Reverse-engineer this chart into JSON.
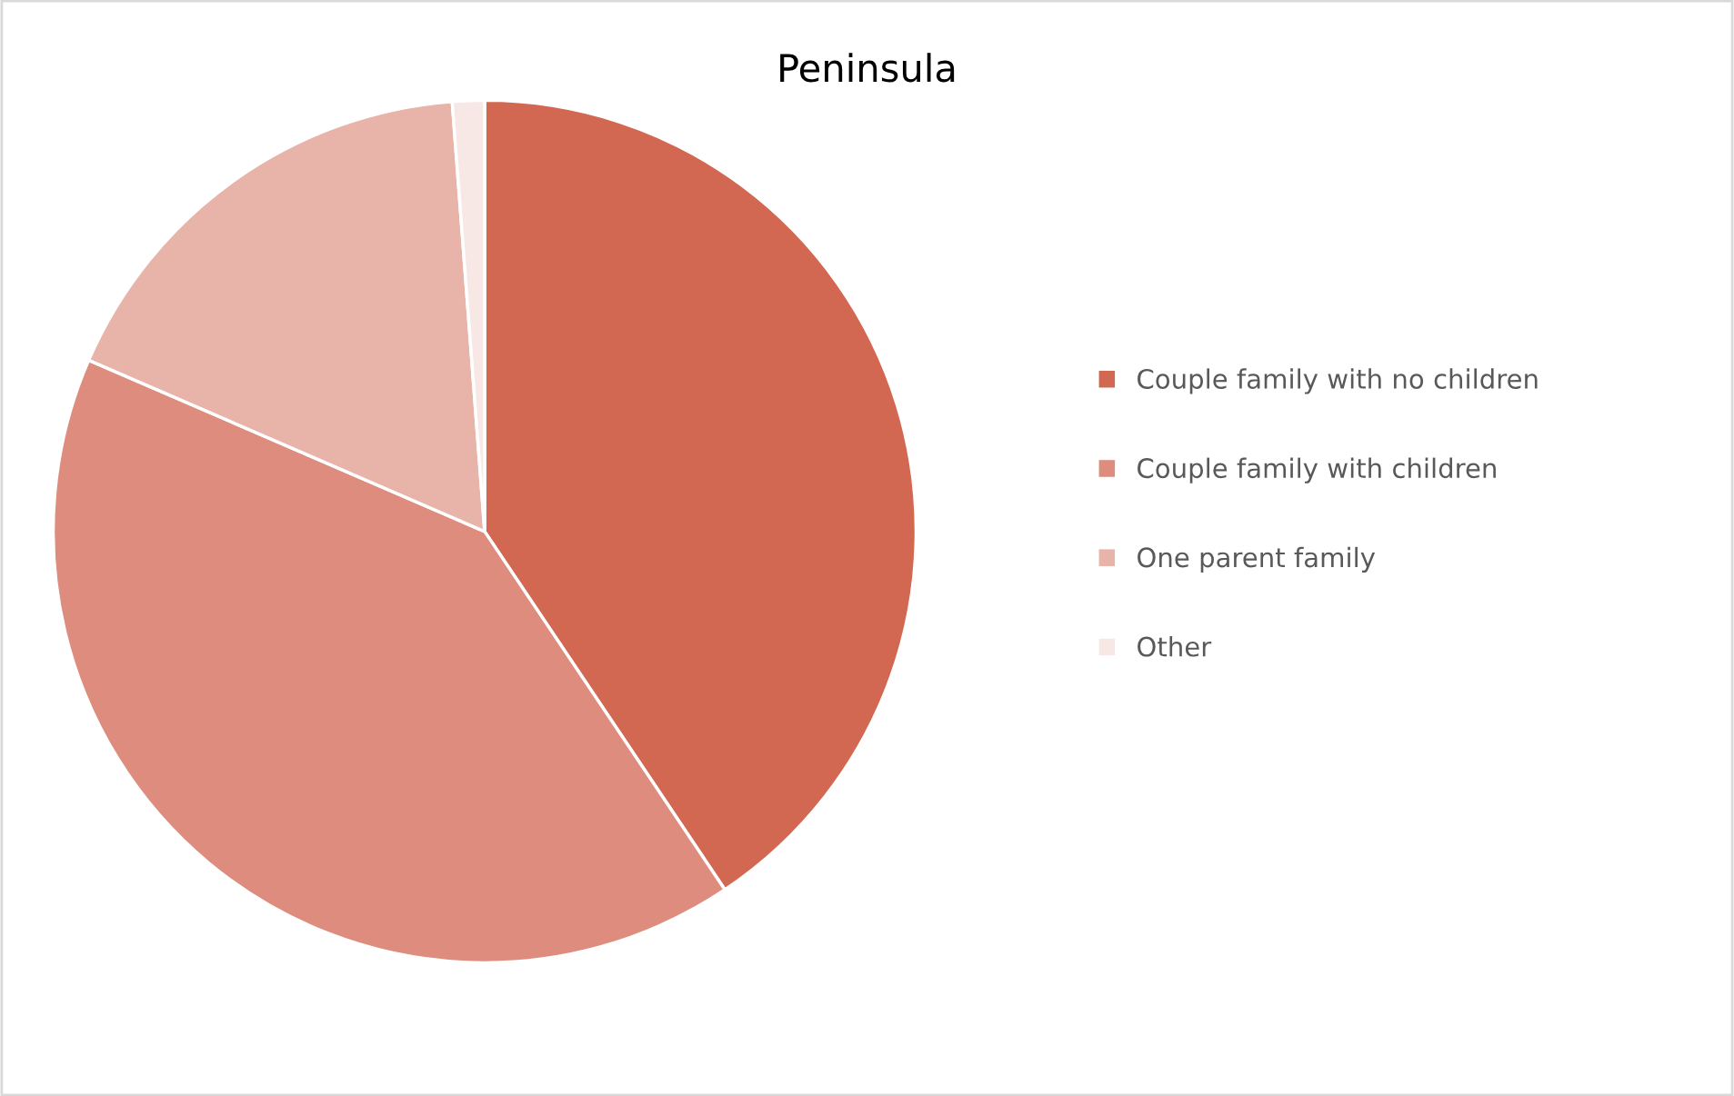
{
  "chart_data": {
    "type": "pie",
    "title": "Peninsula",
    "categories": [
      "Couple family with no children",
      "Couple family with children",
      "One parent family",
      "Other"
    ],
    "values": [
      40.6,
      40.9,
      17.3,
      1.2
    ],
    "colors": [
      "#d26852",
      "#dd8c7e",
      "#e8b3a9",
      "#f8e8e5"
    ],
    "legend": "right"
  }
}
